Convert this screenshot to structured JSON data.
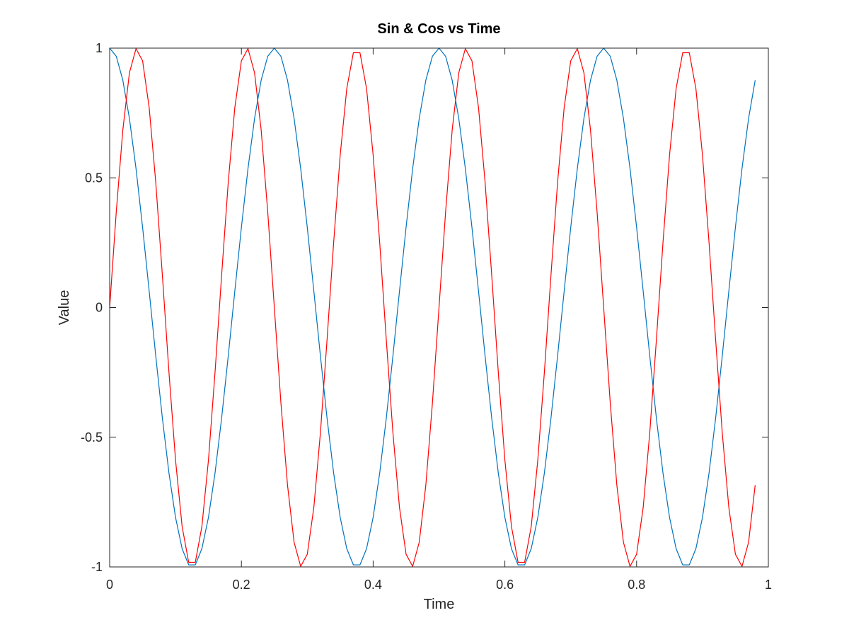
{
  "chart_data": {
    "type": "line",
    "title": "Sin & Cos vs Time",
    "xlabel": "Time",
    "ylabel": "Value",
    "xlim": [
      0,
      1
    ],
    "ylim": [
      -1,
      1
    ],
    "xticks": [
      0,
      0.2,
      0.4,
      0.6,
      0.8,
      1
    ],
    "xtick_labels": [
      "0",
      "0.2",
      "0.4",
      "0.6",
      "0.8",
      "1"
    ],
    "yticks": [
      -1,
      -0.5,
      0,
      0.5,
      1
    ],
    "ytick_labels": [
      "-1",
      "-0.5",
      "0",
      "0.5",
      "1"
    ],
    "grid": false,
    "legend": null,
    "x": [
      0,
      0.01,
      0.02,
      0.03,
      0.04,
      0.05,
      0.06,
      0.07,
      0.08,
      0.09,
      0.1,
      0.11,
      0.12,
      0.13,
      0.14,
      0.15,
      0.16,
      0.17,
      0.18,
      0.19,
      0.2,
      0.21,
      0.22,
      0.23,
      0.24,
      0.25,
      0.26,
      0.27,
      0.28,
      0.29,
      0.3,
      0.31,
      0.32,
      0.33,
      0.34,
      0.35,
      0.36,
      0.37,
      0.38,
      0.39,
      0.4,
      0.41,
      0.42,
      0.43,
      0.44,
      0.45,
      0.46,
      0.47,
      0.48,
      0.49,
      0.5,
      0.51,
      0.52,
      0.53,
      0.54,
      0.55,
      0.56,
      0.57,
      0.58,
      0.59,
      0.6,
      0.61,
      0.62,
      0.63,
      0.64,
      0.65,
      0.66,
      0.67,
      0.68,
      0.69,
      0.7,
      0.71,
      0.72,
      0.73,
      0.74,
      0.75,
      0.76,
      0.77,
      0.78,
      0.79,
      0.8,
      0.81,
      0.82,
      0.83,
      0.84,
      0.85,
      0.86,
      0.87,
      0.88,
      0.89,
      0.9,
      0.91,
      0.92,
      0.93,
      0.94,
      0.95,
      0.96,
      0.97,
      0.98
    ],
    "series": [
      {
        "color": "#0072bd",
        "values": [
          1,
          0.9686,
          0.8763,
          0.729,
          0.5358,
          0.309,
          0.0628,
          -0.1874,
          -0.4258,
          -0.6374,
          -0.809,
          -0.9298,
          -0.9921,
          -0.9921,
          -0.9298,
          -0.809,
          -0.6374,
          -0.4258,
          -0.1874,
          0.0628,
          0.309,
          0.5358,
          0.729,
          0.8763,
          0.9686,
          1,
          0.9686,
          0.8763,
          0.729,
          0.5358,
          0.309,
          0.0628,
          -0.1874,
          -0.4258,
          -0.6374,
          -0.809,
          -0.9298,
          -0.9921,
          -0.9921,
          -0.9298,
          -0.809,
          -0.6374,
          -0.4258,
          -0.1874,
          0.0628,
          0.309,
          0.5358,
          0.729,
          0.8763,
          0.9686,
          1,
          0.9686,
          0.8763,
          0.729,
          0.5358,
          0.309,
          0.0628,
          -0.1874,
          -0.4258,
          -0.6374,
          -0.809,
          -0.9298,
          -0.9921,
          -0.9921,
          -0.9298,
          -0.809,
          -0.6374,
          -0.4258,
          -0.1874,
          0.0628,
          0.309,
          0.5358,
          0.729,
          0.8763,
          0.9686,
          1,
          0.9686,
          0.8763,
          0.729,
          0.5358,
          0.309,
          0.0628,
          -0.1874,
          -0.4258,
          -0.6374,
          -0.809,
          -0.9298,
          -0.9921,
          -0.9921,
          -0.9298,
          -0.809,
          -0.6374,
          -0.4258,
          -0.1874,
          0.0628,
          0.309,
          0.5358,
          0.729,
          0.8763
        ]
      },
      {
        "color": "#ff0000",
        "values": [
          0,
          0.3681,
          0.6845,
          0.9048,
          0.998,
          0.9511,
          0.7705,
          0.4818,
          0.1253,
          -0.2487,
          -0.5878,
          -0.8443,
          -0.9823,
          -0.9823,
          -0.8443,
          -0.5878,
          -0.2487,
          0.1253,
          0.4818,
          0.7705,
          0.9511,
          0.998,
          0.9048,
          0.6845,
          0.3681,
          0,
          -0.3681,
          -0.6845,
          -0.9048,
          -0.998,
          -0.9511,
          -0.7705,
          -0.4818,
          -0.1253,
          0.2487,
          0.5878,
          0.8443,
          0.9823,
          0.9823,
          0.8443,
          0.5878,
          0.2487,
          -0.1253,
          -0.4818,
          -0.7705,
          -0.9511,
          -0.998,
          -0.9048,
          -0.6845,
          -0.3681,
          0,
          0.3681,
          0.6845,
          0.9048,
          0.998,
          0.9511,
          0.7705,
          0.4818,
          0.1253,
          -0.2487,
          -0.5878,
          -0.8443,
          -0.9823,
          -0.9823,
          -0.8443,
          -0.5878,
          -0.2487,
          0.1253,
          0.4818,
          0.7705,
          0.9511,
          0.998,
          0.9048,
          0.6845,
          0.3681,
          0,
          -0.3681,
          -0.6845,
          -0.9048,
          -0.998,
          -0.9511,
          -0.7705,
          -0.4818,
          -0.1253,
          0.2487,
          0.5878,
          0.8443,
          0.9823,
          0.9823,
          0.8443,
          0.5878,
          0.2487,
          -0.1253,
          -0.4818,
          -0.7705,
          -0.9511,
          -0.998,
          -0.9048,
          -0.6845
        ]
      }
    ]
  }
}
